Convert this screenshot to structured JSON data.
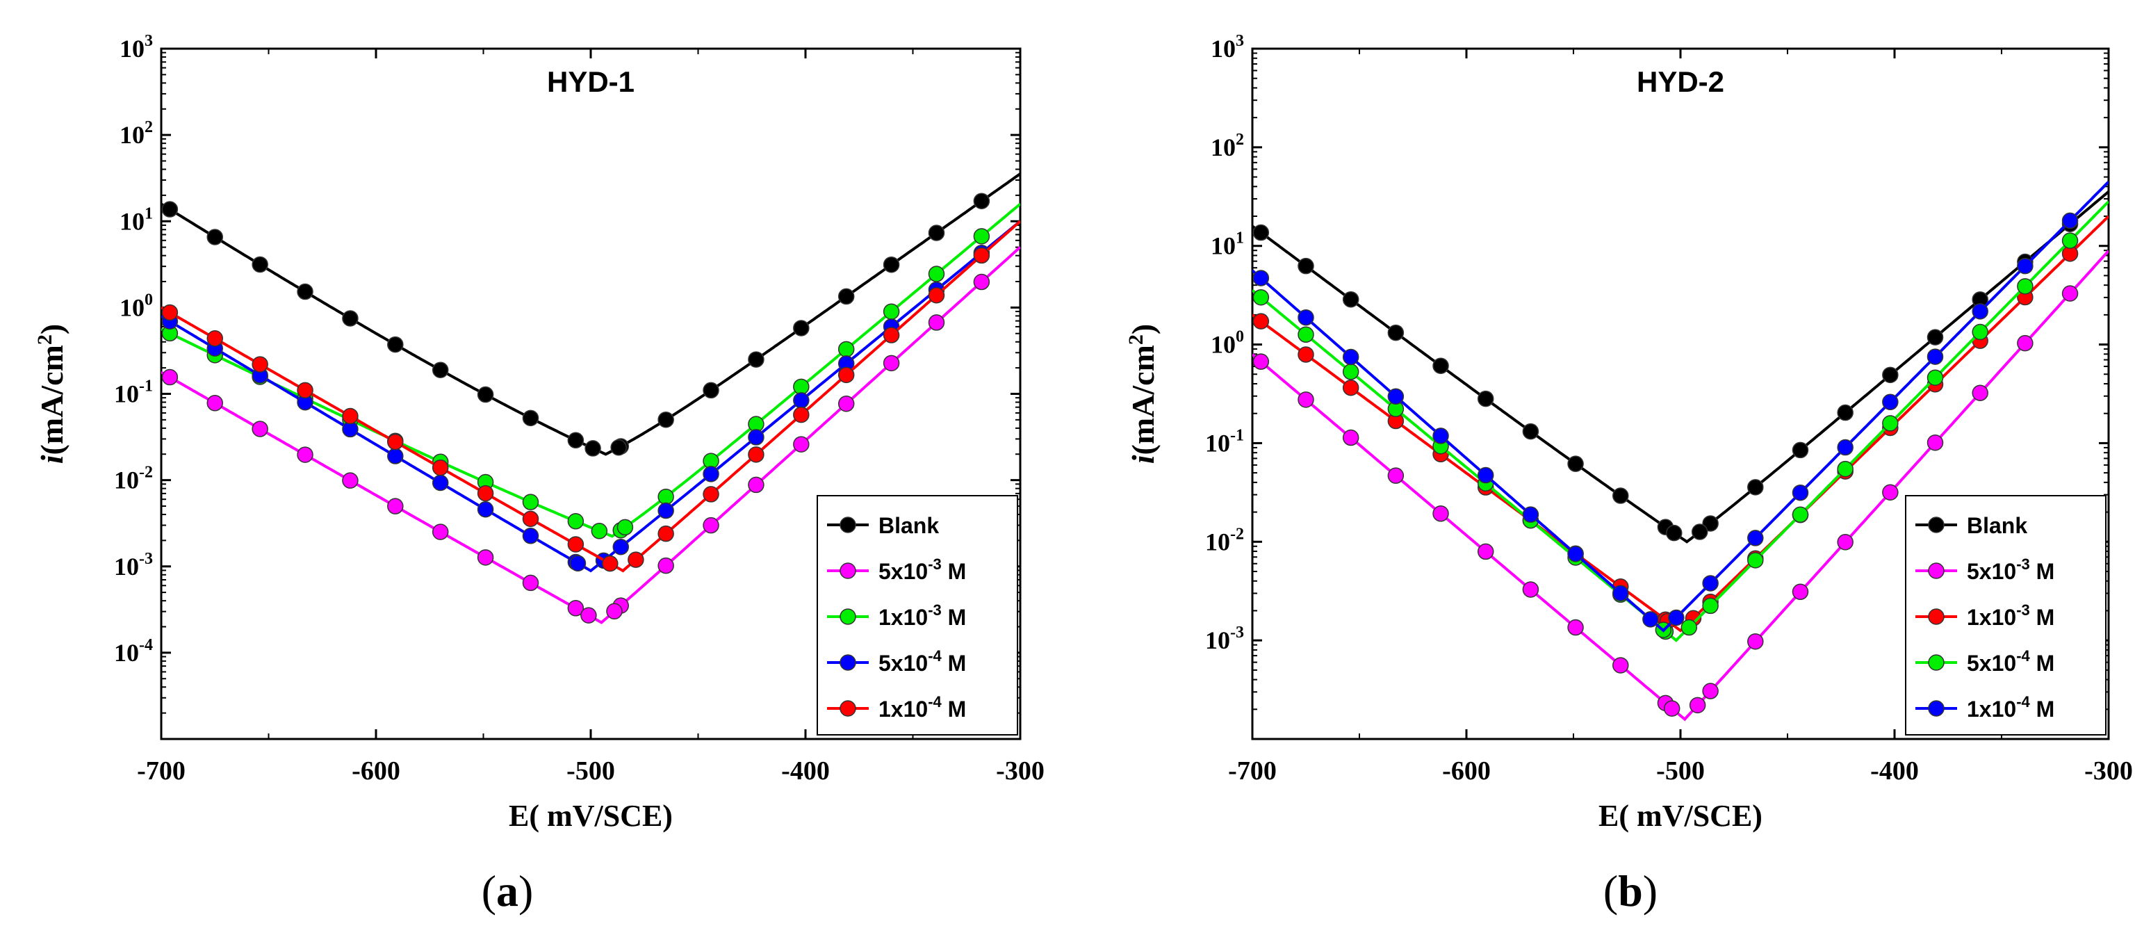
{
  "chart_data": [
    {
      "type": "line",
      "panel_label": "a",
      "title": "HYD-1",
      "xlabel": "E( mV/SCE)",
      "ylabel": "i(mA/cm²)",
      "ylabel_italic": "i",
      "ylabel_rest": "(mA/cm",
      "ylabel_sup": "2",
      "ylabel_close": ")",
      "xlim": [
        -700,
        -300
      ],
      "ylim_log10": [
        -5,
        3
      ],
      "y_scale": "log",
      "xticks": [
        -700,
        -600,
        -500,
        -400,
        -300
      ],
      "xtick_labels": [
        "-700",
        "-600",
        "-500",
        "-400",
        "-300"
      ],
      "yticks_exp": [
        -4,
        -3,
        -2,
        -1,
        0,
        1,
        2,
        3
      ],
      "ytick_base": "10",
      "ytick_exps": [
        "-4",
        "-3",
        "-2",
        "-1",
        "0",
        "1",
        "2",
        "3"
      ],
      "legend_position": "bottom-right",
      "series": [
        {
          "name": "Blank",
          "label_pre": "Blank",
          "label_exp": "",
          "label_post": "",
          "color": "#000000",
          "Ecorr": -493,
          "i_corr_log10": -1.6,
          "i_min_log10": -1.7,
          "i_start_log10": 1.2,
          "i_end_log10": 1.55,
          "ba": 55,
          "bc": 170
        },
        {
          "name": "5x10-3 M",
          "label_pre": "5x10",
          "label_exp": "-3",
          "label_post": " M",
          "color": "#ff00ff",
          "Ecorr": -495,
          "i_corr_log10": -2.5,
          "i_min_log10": -3.65,
          "i_start_log10": -0.75,
          "i_end_log10": 0.7,
          "ba": 55,
          "bc": 170
        },
        {
          "name": "1x10-3 M",
          "label_pre": "1x10",
          "label_exp": "-3",
          "label_post": " M",
          "color": "#00ee00",
          "Ecorr": -490,
          "i_corr_log10": -2.3,
          "i_min_log10": -2.65,
          "i_start_log10": -0.25,
          "i_end_log10": 1.2,
          "ba": 55,
          "bc": 170
        },
        {
          "name": "5x10-4 M",
          "label_pre": "5x10",
          "label_exp": "-4",
          "label_post": " M",
          "color": "#0000ff",
          "Ecorr": -500,
          "i_corr_log10": -2.0,
          "i_min_log10": -3.05,
          "i_start_log10": -0.1,
          "i_end_log10": 1.0,
          "ba": 55,
          "bc": 170
        },
        {
          "name": "1x10-4 M",
          "label_pre": "1x10",
          "label_exp": "-4",
          "label_post": " M",
          "color": "#ff0000",
          "Ecorr": -485,
          "i_corr_log10": -1.9,
          "i_min_log10": -3.05,
          "i_start_log10": 0.0,
          "i_end_log10": 1.0,
          "ba": 55,
          "bc": 170
        }
      ]
    },
    {
      "type": "line",
      "panel_label": "b",
      "title": "HYD-2",
      "xlabel": "E( mV/SCE)",
      "ylabel": "i(mA/cm²)",
      "ylabel_italic": "i",
      "ylabel_rest": "(mA/cm",
      "ylabel_sup": "2",
      "ylabel_close": ")",
      "xlim": [
        -700,
        -300
      ],
      "ylim_log10": [
        -4,
        3
      ],
      "y_scale": "log",
      "xticks": [
        -700,
        -600,
        -500,
        -400,
        -300
      ],
      "xtick_labels": [
        "-700",
        "-600",
        "-500",
        "-400",
        "-300"
      ],
      "yticks_exp": [
        -3,
        -2,
        -1,
        0,
        1,
        2,
        3
      ],
      "ytick_base": "10",
      "ytick_exps": [
        "-3",
        "-2",
        "-1",
        "0",
        "1",
        "2",
        "3"
      ],
      "legend_position": "bottom-right",
      "series": [
        {
          "name": "Blank",
          "label_pre": "Blank",
          "label_exp": "",
          "label_post": "",
          "color": "#000000",
          "Ecorr": -497,
          "i_corr_log10": -1.3,
          "i_min_log10": -2.0,
          "i_start_log10": 1.2,
          "i_end_log10": 1.55,
          "ba": 55,
          "bc": 170
        },
        {
          "name": "5x10-3 M",
          "label_pre": "5x10",
          "label_exp": "-3",
          "label_post": " M",
          "color": "#ff00ff",
          "Ecorr": -498,
          "i_corr_log10": -2.0,
          "i_min_log10": -3.8,
          "i_start_log10": -0.1,
          "i_end_log10": 0.95,
          "ba": 55,
          "bc": 170
        },
        {
          "name": "1x10-3 M",
          "label_pre": "1x10",
          "label_exp": "-3",
          "label_post": " M",
          "color": "#ff0000",
          "Ecorr": -500,
          "i_corr_log10": -1.3,
          "i_min_log10": -2.9,
          "i_start_log10": 0.3,
          "i_end_log10": 1.3,
          "ba": 55,
          "bc": 170
        },
        {
          "name": "5x10-4 M",
          "label_pre": "5x10",
          "label_exp": "-4",
          "label_post": " M",
          "color": "#00ee00",
          "Ecorr": -502,
          "i_corr_log10": -1.2,
          "i_min_log10": -3.0,
          "i_start_log10": 0.55,
          "i_end_log10": 1.45,
          "ba": 55,
          "bc": 170
        },
        {
          "name": "1x10-4 M",
          "label_pre": "1x10",
          "label_exp": "-4",
          "label_post": " M",
          "color": "#0000ff",
          "Ecorr": -508,
          "i_corr_log10": -1.1,
          "i_min_log10": -2.9,
          "i_start_log10": 0.75,
          "i_end_log10": 1.65,
          "ba": 55,
          "bc": 170
        }
      ]
    }
  ],
  "captions": [
    {
      "open": "(",
      "label": "a",
      "close": ")"
    },
    {
      "open": "(",
      "label": "b",
      "close": ")"
    }
  ]
}
